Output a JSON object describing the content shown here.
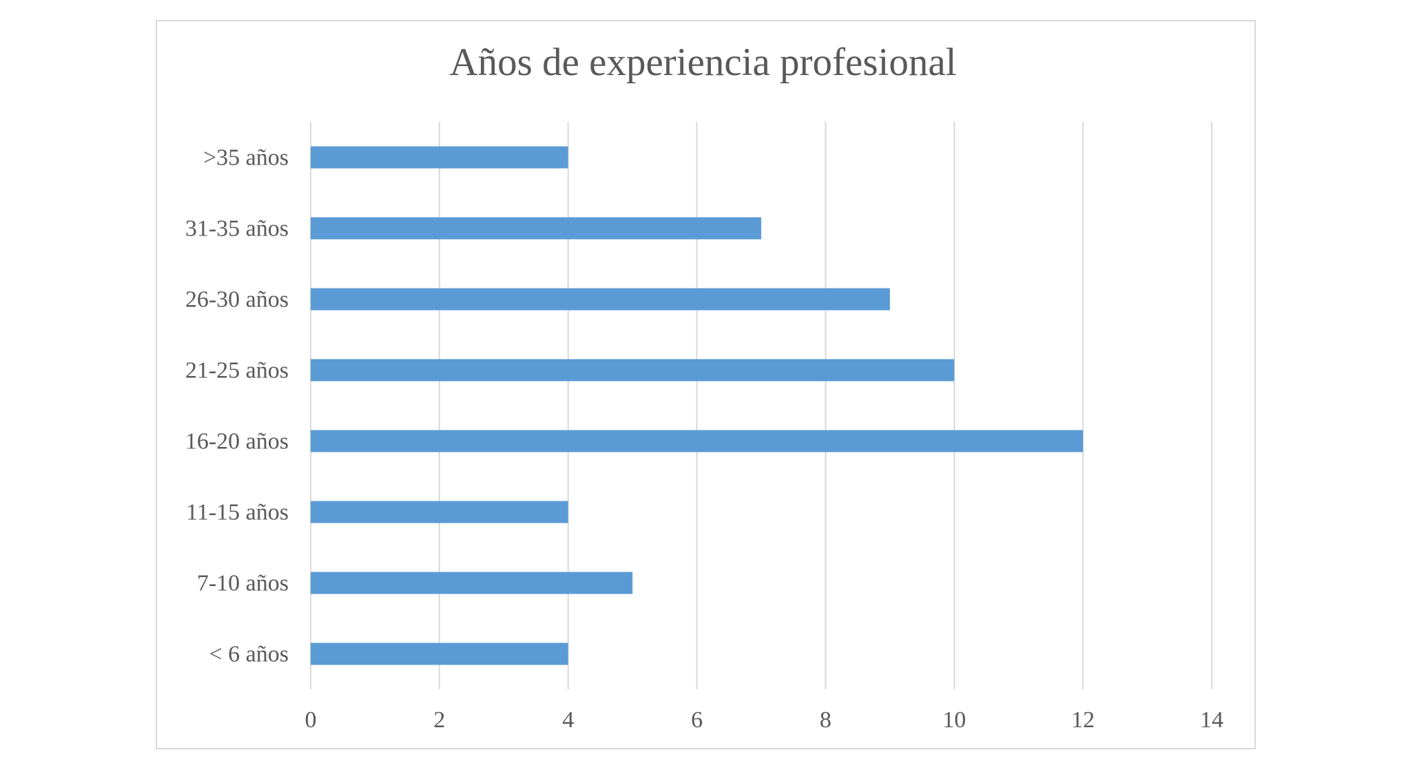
{
  "chart_data": {
    "type": "bar",
    "orientation": "horizontal",
    "title": "Años de experiencia profesional",
    "categories": [
      "< 6 años",
      "7-10 años",
      "11-15 años",
      "16-20 años",
      "21-25 años",
      "26-30 años",
      "31-35 años",
      ">35 años"
    ],
    "values": [
      4,
      5,
      4,
      12,
      10,
      9,
      7,
      4
    ],
    "xlim": [
      0,
      14
    ],
    "xticks": [
      "0",
      "2",
      "4",
      "6",
      "8",
      "10",
      "12",
      "14"
    ],
    "grid": true,
    "legend": "none",
    "bar_color": "#5b9bd5",
    "grid_color": "#d9d9d9",
    "text_color": "#595959"
  }
}
